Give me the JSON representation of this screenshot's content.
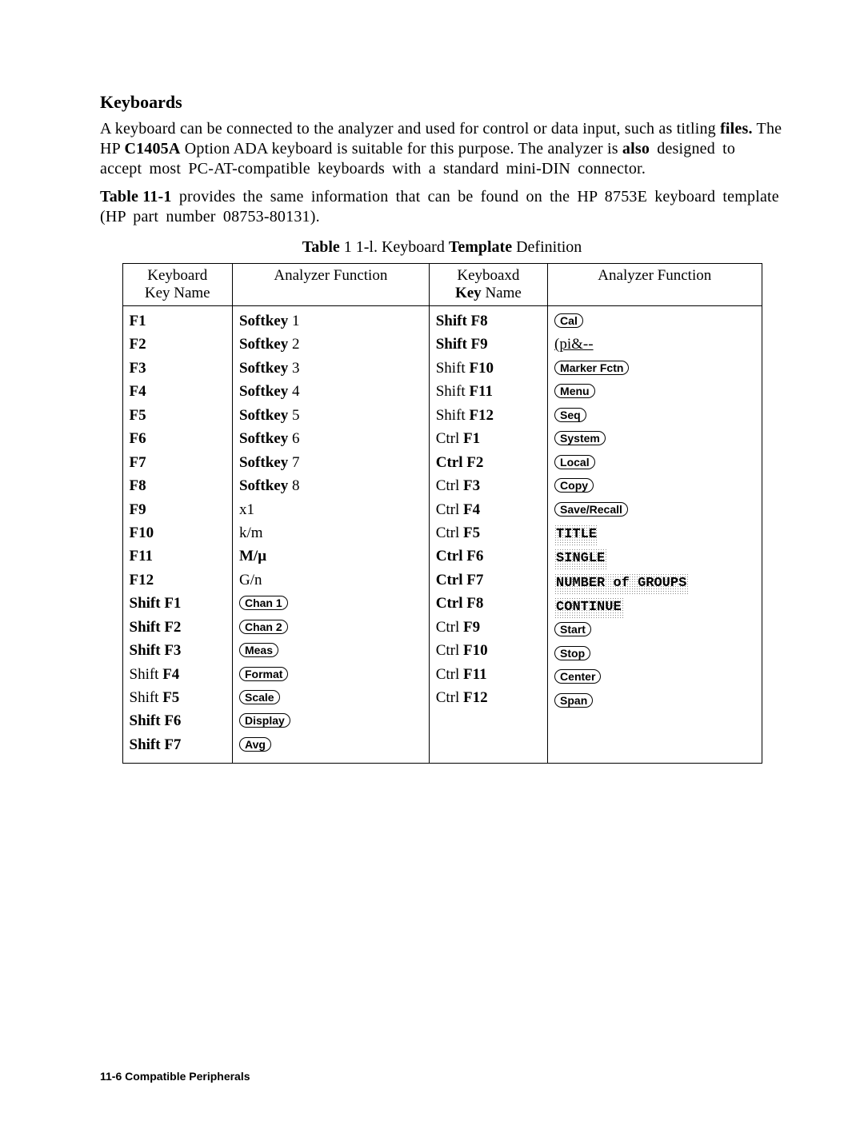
{
  "heading": "Keyboards",
  "para1_part1": "A keyboard can be connected to the analyzer and used for control or data input, such as titling ",
  "para1_bold1": "files.",
  "para1_part2": " The HP ",
  "para1_bold2": "C1405A",
  "para1_part3": " Option ADA keyboard is suitable for this purpose. The analyzer is ",
  "para1_bold3": "also",
  "para1_part4": " designed to accept most PC-AT-compatible keyboards with a standard mini-DIN connector.",
  "para2_bold1": "Table 11-1",
  "para2_part1": " provides the same information that can be found on the HP 8753E keyboard template (HP part number 08753-80131).",
  "caption_bold1": "Table",
  "caption_mid": " 1 1-l. Keyboard ",
  "caption_bold2": "Template",
  "caption_end": " Definition",
  "header": {
    "c1a": "Keyboard",
    "c1b": "Key Name",
    "c2": "Analyzer Function",
    "c3a": "Keyboaxd",
    "c3b_bold": "Key",
    "c3b_rest": " Name",
    "c4": "Analyzer  Function"
  },
  "left_rows": [
    {
      "k": "F1",
      "f": "Softkey",
      "n": " 1",
      "type": "sk"
    },
    {
      "k": "F2",
      "f": "Softkey",
      "n": " 2",
      "type": "sk"
    },
    {
      "k": "F3",
      "f": "Softkey",
      "n": " 3",
      "type": "sk"
    },
    {
      "k": "F4",
      "f": "Softkey",
      "n": " 4",
      "type": "sk"
    },
    {
      "k": "F5",
      "f": "Softkey",
      "n": " 5",
      "type": "sk"
    },
    {
      "k": "F6",
      "f": "Softkey",
      "n": " 6",
      "type": "sk"
    },
    {
      "k": "F7",
      "f": "Softkey",
      "n": " 7",
      "type": "sk"
    },
    {
      "k": "F8",
      "f": "Softkey",
      "n": " 8",
      "type": "sk"
    },
    {
      "k": "F9",
      "f": "x1",
      "type": "plain"
    },
    {
      "k": "F10",
      "f": "k/m",
      "type": "plain"
    },
    {
      "k": "F11",
      "f": "M/μ",
      "type": "plainbold"
    },
    {
      "k": "F12",
      "f": "G/n",
      "type": "plain"
    },
    {
      "k": "Shift F1",
      "f": "Chan 1",
      "type": "cap"
    },
    {
      "k": "Shift F2",
      "f": "Chan 2",
      "type": "cap"
    },
    {
      "k": "Shift F3",
      "f": "Meas",
      "type": "cap"
    },
    {
      "k": "Shift F4",
      "f": "Format",
      "type": "cap",
      "knorm": true
    },
    {
      "k": "Shift F5",
      "f": "Scale",
      "type": "cap",
      "knorm": true
    },
    {
      "k": "Shift F6",
      "f": "Display",
      "type": "cap"
    },
    {
      "k": "Shift F7",
      "f": "Avg",
      "type": "cap"
    }
  ],
  "right_rows": [
    {
      "k": "Shift F8",
      "f": "Cal",
      "type": "cap"
    },
    {
      "k": "Shift F9",
      "f": "(pi&--",
      "type": "under"
    },
    {
      "k": "Shift F10",
      "f": "Marker Fctn",
      "type": "cap",
      "knorm": true
    },
    {
      "k": "Shift   F11",
      "f": "Menu",
      "type": "cap",
      "knorm": true
    },
    {
      "k": "Shift   F12",
      "f": "Seq",
      "type": "cap",
      "knorm": true
    },
    {
      "k": "Ctrl F1",
      "f": "System",
      "type": "cap",
      "kctrl": true
    },
    {
      "k": "Ctrl F2",
      "f": "Local",
      "type": "cap"
    },
    {
      "k": "Ctrl F3",
      "f": "Copy",
      "type": "cap",
      "kctrl": true
    },
    {
      "k": "Ctrl F4",
      "f": "Save/Recall",
      "type": "cap",
      "kctrl": true
    },
    {
      "k": "Ctrl F5",
      "f": "TITLE",
      "type": "dot",
      "kctrl": true
    },
    {
      "k": "Ctrl F6",
      "f": "SINGLE",
      "type": "dot"
    },
    {
      "k": "Ctrl F7",
      "f": "NUMBER of GROUPS",
      "type": "dot"
    },
    {
      "k": "Ctrl F8",
      "f": "CONTINUE",
      "type": "dot"
    },
    {
      "k": "Ctrl F9",
      "f": "Start",
      "type": "cap",
      "kctrl": true
    },
    {
      "k": "Ctrl F10",
      "f": "Stop",
      "type": "cap",
      "kctrl": true
    },
    {
      "k": "Ctrl F11",
      "f": "Center",
      "type": "cap",
      "kctrl": true
    },
    {
      "k": "Ctrl F12",
      "f": "Span",
      "type": "cap",
      "kctrl": true
    },
    {
      "k": "",
      "f": "",
      "type": "empty"
    },
    {
      "k": "",
      "f": "",
      "type": "empty"
    }
  ],
  "footer": "11-6  Compatible Peripherals"
}
